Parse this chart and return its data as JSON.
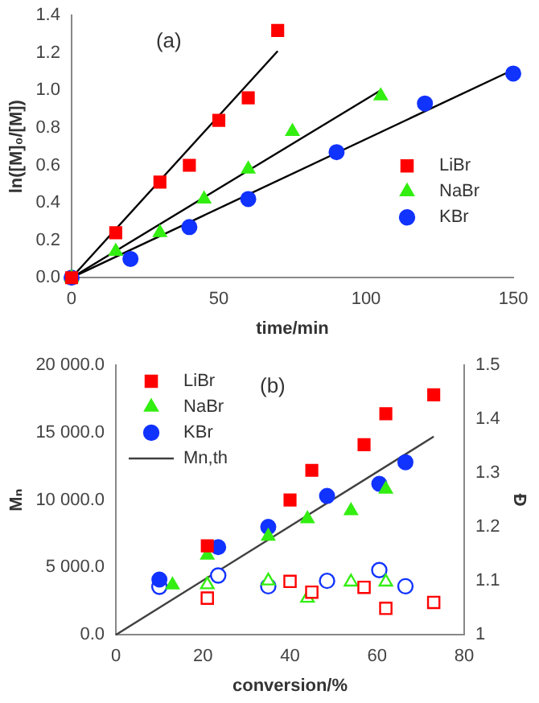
{
  "chart_data": [
    {
      "type": "scatter",
      "xlabel": "time/min",
      "ylabel": "ln([M]₀/[M])",
      "annotations": [
        "(a)"
      ],
      "legend": "right",
      "xlim": [
        0,
        150
      ],
      "xticks": [
        0,
        50,
        100,
        150
      ],
      "ylim": [
        0,
        1.4
      ],
      "yticks": [
        {
          "value": 0,
          "label": "0.0"
        },
        {
          "value": 0.2,
          "label": "0.2"
        },
        {
          "value": 0.4,
          "label": "0.4"
        },
        {
          "value": 0.6,
          "label": "0.6"
        },
        {
          "value": 0.8,
          "label": "0.8"
        },
        {
          "value": 1.0,
          "label": "1.0"
        },
        {
          "value": 1.2,
          "label": "1.2"
        },
        {
          "value": 1.4,
          "label": "1.4"
        }
      ],
      "series": [
        {
          "type": "line",
          "color": "#000000",
          "marker": "none",
          "x": [
            0,
            70
          ],
          "values": [
            0,
            1.21
          ]
        },
        {
          "type": "line",
          "color": "#000000",
          "marker": "none",
          "x": [
            0,
            105
          ],
          "values": [
            0,
            1.0
          ]
        },
        {
          "type": "line",
          "color": "#000000",
          "marker": "none",
          "x": [
            0,
            150
          ],
          "values": [
            0,
            1.11
          ]
        },
        {
          "name": "LiBr",
          "color": "#ff0000",
          "marker": "square",
          "x": [
            0,
            15,
            30,
            40,
            50,
            60,
            70
          ],
          "values": [
            0,
            0.24,
            0.51,
            0.6,
            0.84,
            0.96,
            1.32
          ]
        },
        {
          "name": "NaBr",
          "color": "#33ee11",
          "marker": "triangle",
          "x": [
            0,
            15,
            30,
            45,
            60,
            75,
            105
          ],
          "values": [
            0,
            0.14,
            0.24,
            0.42,
            0.58,
            0.78,
            0.97
          ]
        },
        {
          "name": "KBr",
          "color": "#1133ff",
          "marker": "circle",
          "x": [
            0,
            20,
            40,
            60,
            90,
            120,
            150
          ],
          "values": [
            0,
            0.1,
            0.27,
            0.42,
            0.67,
            0.93,
            1.09
          ]
        }
      ]
    },
    {
      "type": "scatter",
      "xlabel": "conversion/%",
      "ylabel": "Mₙ",
      "y2label": "Đ",
      "annotations": [
        "(b)"
      ],
      "legend": "top left",
      "xlim": [
        0,
        80
      ],
      "xticks": [
        0,
        20,
        40,
        60,
        80
      ],
      "ylim": [
        0,
        20000
      ],
      "yticks": [
        {
          "value": 0,
          "label": "0.0"
        },
        {
          "value": 5000,
          "label": "5 000.0"
        },
        {
          "value": 10000,
          "label": "10 000.0"
        },
        {
          "value": 15000,
          "label": "15 000.0"
        },
        {
          "value": 20000,
          "label": "20 000.0"
        }
      ],
      "y2lim": [
        1,
        1.5
      ],
      "y2ticks": [
        1,
        1.1,
        1.2,
        1.3,
        1.4,
        1.5
      ],
      "series": [
        {
          "name": "LiBr",
          "color": "#ff0000",
          "marker": "square",
          "x": [
            21,
            40,
            45,
            57,
            62,
            73
          ],
          "values": [
            6600,
            10000,
            12200,
            14100,
            16400,
            17800
          ]
        },
        {
          "name": "NaBr",
          "color": "#33ee11",
          "marker": "triangle",
          "x": [
            13,
            21,
            35,
            44,
            54,
            62
          ],
          "values": [
            3700,
            5900,
            7300,
            8600,
            9200,
            10800
          ]
        },
        {
          "name": "KBr",
          "color": "#1133ff",
          "marker": "circle",
          "x": [
            10,
            23.5,
            35,
            48.5,
            60.5,
            66.5
          ],
          "values": [
            4100,
            6500,
            8000,
            10300,
            11200,
            12800
          ]
        },
        {
          "name": "Mn,th",
          "type": "line",
          "color": "#404040",
          "marker": "none",
          "x": [
            0,
            73
          ],
          "values": [
            0,
            14700
          ]
        },
        {
          "axis": "y2",
          "color": "#ff0000",
          "marker": "square",
          "x": [
            21,
            40,
            45,
            57,
            62,
            73
          ],
          "values": [
            1.068,
            1.099,
            1.079,
            1.088,
            1.049,
            1.06
          ]
        },
        {
          "axis": "y2",
          "color": "#33ee11",
          "marker": "triangle",
          "x": [
            21,
            35,
            44,
            54,
            62
          ],
          "values": [
            1.093,
            1.1,
            1.068,
            1.098,
            1.098
          ]
        },
        {
          "axis": "y2",
          "color": "#1133ff",
          "marker": "circle",
          "x": [
            10,
            23.5,
            35,
            48.5,
            60.5,
            66.5
          ],
          "values": [
            1.089,
            1.11,
            1.09,
            1.1,
            1.12,
            1.09
          ]
        }
      ]
    }
  ]
}
